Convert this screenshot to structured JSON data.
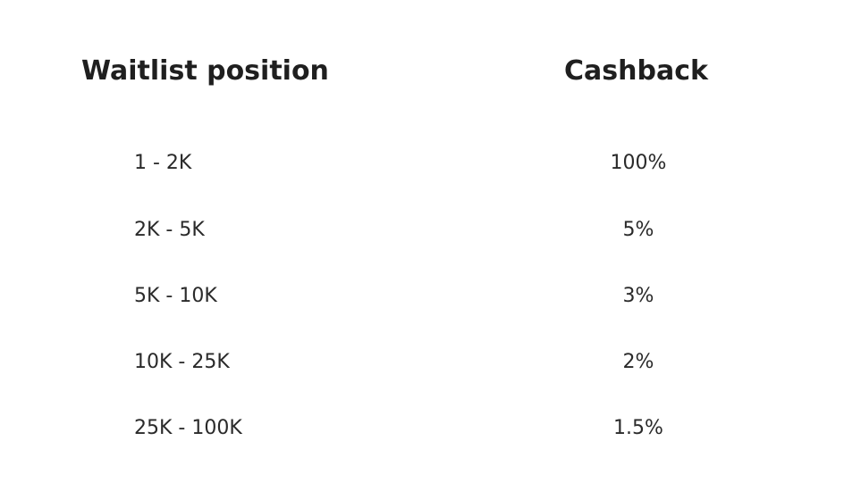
{
  "table": {
    "headers": {
      "position": "Waitlist position",
      "cashback": "Cashback"
    },
    "rows": [
      {
        "position": "1 - 2K",
        "cashback": "100%"
      },
      {
        "position": "2K - 5K",
        "cashback": "5%"
      },
      {
        "position": "5K - 10K",
        "cashback": "3%"
      },
      {
        "position": "10K - 25K",
        "cashback": "2%"
      },
      {
        "position": "25K - 100K",
        "cashback": "1.5%"
      }
    ]
  }
}
